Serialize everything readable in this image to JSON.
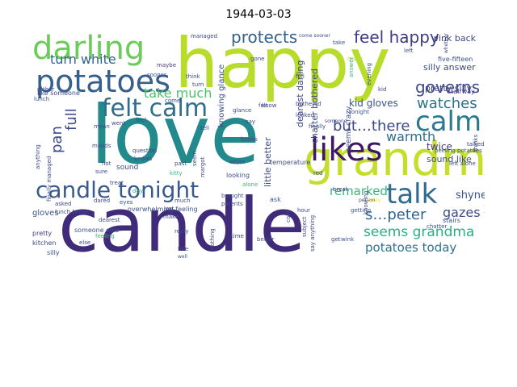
{
  "title": "1944-03-03",
  "words": {
    "love": "love",
    "candle": "candle",
    "happy": "happy",
    "grandma": "grandma",
    "darling": "darling",
    "potatoes": "potatoes",
    "felt_calm": "felt calm",
    "candle_tonight": "candle tonight",
    "likes": "likes",
    "talk": "talk",
    "calm": "calm",
    "feel_happy": "feel happy",
    "protects": "protects",
    "turn_white": "turn white",
    "take_much": "take much",
    "full": "full",
    "pan": "pan",
    "governs": "governs",
    "watches": "watches",
    "but_there": "but…there",
    "warmth": "warmth",
    "remarked": "remarked",
    "s_peter": "s…peter",
    "seems_grandma": "seems grandma",
    "potatoes_today": "potatoes today",
    "gazes": "gazes",
    "shyness": "shyness",
    "twice": "twice",
    "kid_gloves": "kid gloves",
    "pretty_silly": "pretty silly",
    "silly_answer": "silly answer",
    "sound_like": "sound like",
    "wink_back": "wink back",
    "five_fifteen": "five-fifteen",
    "stairway": "stairway",
    "dearest_darling": "dearest darling",
    "chatter_bothered": "chatter bothered",
    "knowing_glance": "knowing glance",
    "little_better": "little better",
    "seems_crazy": "seems crazy",
    "gloves": "gloves",
    "sound": "sound",
    "lunch_break": "lunch break",
    "someone_else": "someone else",
    "overwhelming_feeling": "overwhelming feeling",
    "kitchen": "kitchen",
    "pretty": "pretty",
    "silly": "silly",
    "asked": "asked",
    "lunch": "lunch",
    "rather": "rather",
    "sooner": "sooner",
    "maybe": "maybe",
    "like_someone": "like someone",
    "finally_managed": "finally managed",
    "anything": "anything",
    "managed": "managed",
    "come_sooner": "come sooner",
    "take": "take",
    "whether": "whether",
    "left": "left",
    "crazy": "crazy",
    "evening": "evening",
    "answer": "answer",
    "kid": "kid",
    "bothered": "bothered",
    "tonight": "tonight",
    "looked": "looked",
    "someone": "someone",
    "finally": "finally",
    "temperature": "temperature",
    "looking": "looking",
    "alone": "alone",
    "white": "white",
    "brought": "brought",
    "parents": "parents",
    "nothing": "nothing",
    "time": "time",
    "better": "better",
    "hour": "hour",
    "ask": "ask",
    "red": "red",
    "break": "break",
    "getting": "getting",
    "person": "person",
    "today": "today",
    "stairs": "stairs",
    "left_alone": "left alone",
    "talked": "talked",
    "peeling_potatoes": "peeling potatoes",
    "thinks": "thinks",
    "chatter": "chatter",
    "wink": "wink",
    "get": "get",
    "subject": "subject",
    "cold": "cold",
    "say_anything": "say anything",
    "knowing": "knowing",
    "overwhelming": "overwhelming",
    "fine": "fine",
    "well": "well",
    "reply": "reply",
    "dared": "dared",
    "eyes": "eyes",
    "dearest": "dearest",
    "else": "else",
    "hot": "hot",
    "moods": "moods",
    "mean": "mean",
    "went": "went",
    "tell": "tell",
    "seem": "seem",
    "past": "past",
    "kitty": "kitty",
    "feel": "feel",
    "question": "question",
    "treat": "treat",
    "day": "day",
    "books": "books",
    "glance": "glance",
    "felt": "felt",
    "know": "know",
    "say": "say",
    "much": "much",
    "yet": "yet",
    "make": "make",
    "come": "come",
    "think": "think",
    "turn": "turn",
    "gone": "gone",
    "knows": "knows",
    "feeling": "feeling",
    "sure": "sure",
    "margot": "margot",
    "little": "little",
    "full_small": "full"
  },
  "colors": {
    "dark_purple": "#440154",
    "purple": "#482878",
    "indigo": "#3e4989",
    "blue": "#31688e",
    "teal_blue": "#26828e",
    "teal": "#1f9e89",
    "green": "#35b779",
    "light_green": "#6ece58",
    "yellow_green": "#b5de2b",
    "yellow": "#fde725"
  }
}
